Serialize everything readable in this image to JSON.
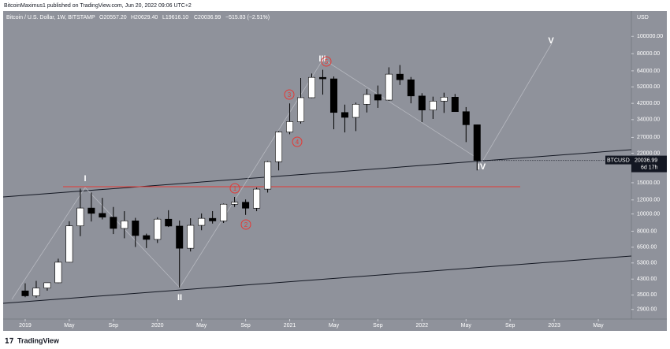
{
  "chart_data": {
    "type": "candlestick",
    "publisher": "BitcoinMaximus1 published on TradingView.com, Jun 20, 2022 09:06 UTC+2",
    "title": "Bitcoin / U.S. Dollar, 1W, BITSTAMP",
    "ohlc_readout": [
      "O20557.20",
      "H20629.40",
      "L19616.10",
      "C20036.99",
      "−515.83 (−2.51%)"
    ],
    "currency": "USD",
    "symbol": "BTCUSD",
    "last_price_label": "20036.99",
    "countdown": "6d 17h",
    "brand": "TradingView",
    "wave_labels": [
      "I",
      "II",
      "III",
      "IV",
      "V"
    ],
    "sub_wave_labels": [
      "1",
      "2",
      "3",
      "4",
      "5"
    ],
    "log_scale": true,
    "grid": false,
    "up_color": "#ffffff",
    "down_color": "#000000",
    "x": [
      "2019-01",
      "2019-02",
      "2019-03",
      "2019-04",
      "2019-05",
      "2019-06",
      "2019-07",
      "2019-08",
      "2019-09",
      "2019-10",
      "2019-11",
      "2019-12",
      "2020-01",
      "2020-02",
      "2020-03",
      "2020-04",
      "2020-05",
      "2020-06",
      "2020-07",
      "2020-08",
      "2020-09",
      "2020-10",
      "2020-11",
      "2020-12",
      "2021-01",
      "2021-02",
      "2021-03",
      "2021-04",
      "2021-05",
      "2021-06",
      "2021-07",
      "2021-08",
      "2021-09",
      "2021-10",
      "2021-11",
      "2021-12",
      "2022-01",
      "2022-02",
      "2022-03",
      "2022-04",
      "2022-05",
      "2022-06"
    ],
    "open": [
      3690,
      3460,
      3830,
      4100,
      5350,
      8570,
      10800,
      10080,
      9600,
      8290,
      9150,
      7560,
      7190,
      9350,
      8550,
      6410,
      8630,
      9450,
      9140,
      11350,
      11650,
      10780,
      13800,
      19700,
      28950,
      33100,
      45200,
      58800,
      57700,
      37300,
      35000,
      41500,
      47100,
      43800,
      61300,
      57000,
      46200,
      38500,
      43200,
      45500,
      37700,
      31800
    ],
    "high": [
      4070,
      4200,
      4100,
      5600,
      9100,
      13900,
      13200,
      12330,
      10950,
      10370,
      9510,
      7750,
      9580,
      10500,
      9190,
      9460,
      10070,
      10380,
      11450,
      12470,
      12070,
      14100,
      19900,
      29300,
      41950,
      58350,
      61800,
      64900,
      59500,
      41300,
      42400,
      50500,
      52900,
      67000,
      69000,
      59100,
      47900,
      45800,
      48200,
      47400,
      40000,
      31900
    ],
    "low": [
      3400,
      3380,
      3700,
      4080,
      5330,
      7500,
      9070,
      9320,
      7710,
      7300,
      6520,
      6430,
      6870,
      8450,
      3850,
      6150,
      8100,
      8830,
      8900,
      10950,
      9880,
      10370,
      13200,
      17600,
      28130,
      32300,
      45000,
      47000,
      30000,
      28800,
      29300,
      37300,
      39600,
      43300,
      53300,
      42000,
      32900,
      34300,
      37100,
      37700,
      25400,
      17600
    ],
    "close": [
      3460,
      3830,
      4100,
      5350,
      8570,
      10800,
      10080,
      9600,
      8290,
      9150,
      7560,
      7190,
      9350,
      8550,
      6410,
      8630,
      9450,
      9140,
      11350,
      11650,
      10780,
      13800,
      19700,
      28950,
      33100,
      45200,
      58800,
      57700,
      37300,
      35000,
      41500,
      47100,
      43800,
      61300,
      57000,
      46200,
      38500,
      43200,
      45500,
      37700,
      31800,
      20036.99
    ],
    "xlim": [
      "2018-11",
      "2023-08"
    ],
    "xticks": [
      {
        "value": "2019-01",
        "label": "2019"
      },
      {
        "value": "2019-05",
        "label": "May"
      },
      {
        "value": "2019-09",
        "label": "Sep"
      },
      {
        "value": "2020-01",
        "label": "2020"
      },
      {
        "value": "2020-05",
        "label": "May"
      },
      {
        "value": "2020-09",
        "label": "Sep"
      },
      {
        "value": "2021-01",
        "label": "2021"
      },
      {
        "value": "2021-05",
        "label": "May"
      },
      {
        "value": "2021-09",
        "label": "Sep"
      },
      {
        "value": "2022-01",
        "label": "2022"
      },
      {
        "value": "2022-05",
        "label": "May"
      },
      {
        "value": "2022-09",
        "label": "Sep"
      },
      {
        "value": "2023-01",
        "label": "2023"
      },
      {
        "value": "2023-05",
        "label": "May"
      }
    ],
    "ylim": [
      2560,
      139000
    ],
    "yticks": [
      {
        "value": 100000,
        "label": "100000.00"
      },
      {
        "value": 80000,
        "label": "80000.00"
      },
      {
        "value": 64000,
        "label": "64000.00"
      },
      {
        "value": 52000,
        "label": "52000.00"
      },
      {
        "value": 42000,
        "label": "42000.00"
      },
      {
        "value": 34000,
        "label": "34000.00"
      },
      {
        "value": 27000,
        "label": "27000.00"
      },
      {
        "value": 22000,
        "label": "22000.00"
      },
      {
        "value": 15000,
        "label": "15000.00"
      },
      {
        "value": 12000,
        "label": "12000.00"
      },
      {
        "value": 10000,
        "label": "10000.00"
      },
      {
        "value": 8000,
        "label": "8000.00"
      },
      {
        "value": 6500,
        "label": "6500.00"
      },
      {
        "value": 5300,
        "label": "5300.00"
      },
      {
        "value": 4300,
        "label": "4300.00"
      },
      {
        "value": 3500,
        "label": "3500.00"
      },
      {
        "value": 2900,
        "label": "2900.00"
      }
    ]
  }
}
